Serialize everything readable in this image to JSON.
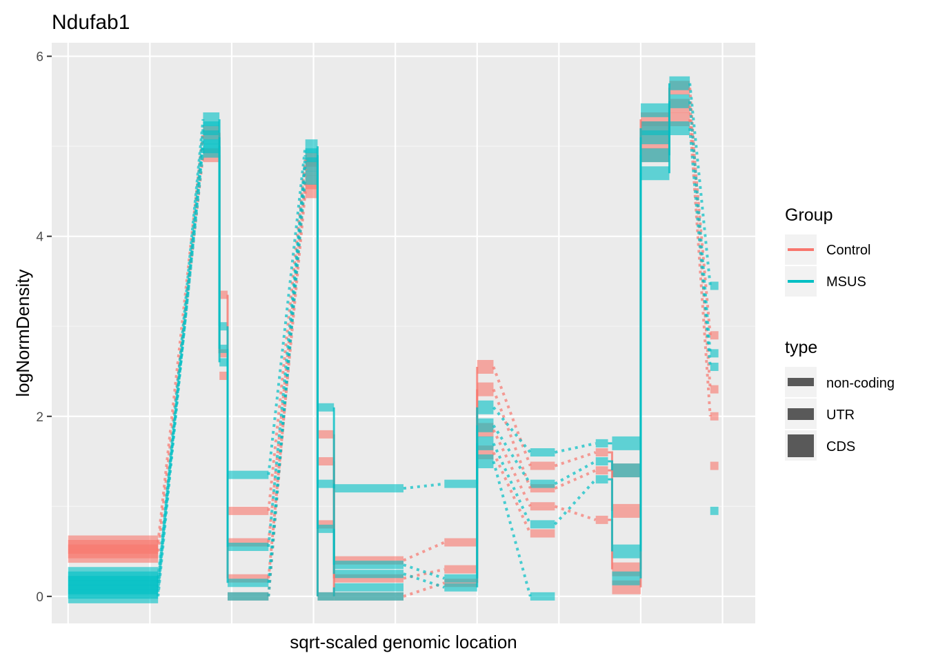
{
  "chart_data": {
    "type": "line",
    "title": "Ndufab1",
    "xlabel": "sqrt-scaled genomic location",
    "ylabel": "logNormDensity",
    "xlim": [
      -0.2,
      8.4
    ],
    "ylim": [
      -0.3,
      6.15
    ],
    "y_ticks": [
      0,
      2,
      4,
      6
    ],
    "y_tick_labels": [
      "0",
      "2",
      "4",
      "6"
    ],
    "x_gridlines": [
      0,
      1,
      2,
      3,
      4,
      5,
      6,
      7,
      8
    ],
    "grid": true,
    "legend": {
      "placement": "right",
      "group_title": "Group",
      "type_title": "type",
      "groups": [
        {
          "name": "Control",
          "color": "#F8766D"
        },
        {
          "name": "MSUS",
          "color": "#00BFC4"
        }
      ],
      "types": [
        {
          "name": "non-coding",
          "weight": "thin"
        },
        {
          "name": "UTR",
          "weight": "medium"
        },
        {
          "name": "CDS",
          "weight": "thick"
        }
      ]
    },
    "segments": [
      {
        "x0": 0.0,
        "x1": 1.1,
        "type": "CDS",
        "control": [
          0.5,
          0.6,
          0.45,
          0.55
        ],
        "msus": [
          0.1,
          0.0,
          0.15,
          0.2,
          0.05,
          0.25
        ]
      },
      {
        "x0": 1.65,
        "x1": 1.85,
        "type": "CDS",
        "control": [
          4.9,
          5.15
        ],
        "msus": [
          5.3,
          5.1,
          5.0,
          4.95,
          5.2
        ]
      },
      {
        "x0": 1.85,
        "x1": 1.95,
        "type": "UTR",
        "control": [
          3.35,
          2.7,
          2.45
        ],
        "msus": [
          3.0,
          2.75,
          2.6
        ]
      },
      {
        "x0": 1.95,
        "x1": 2.45,
        "type": "UTR",
        "control": [
          0.95,
          0.6,
          0.2,
          0.0
        ],
        "msus": [
          1.35,
          0.55,
          0.15,
          0.0
        ]
      },
      {
        "x0": 2.9,
        "x1": 3.05,
        "type": "CDS",
        "control": [
          4.85,
          4.6,
          4.5,
          4.75
        ],
        "msus": [
          5.0,
          4.8,
          4.65,
          4.9
        ]
      },
      {
        "x0": 3.05,
        "x1": 3.25,
        "type": "UTR",
        "control": [
          1.8,
          1.5,
          0.8,
          0.0
        ],
        "msus": [
          2.1,
          1.25,
          0.75,
          0.0
        ]
      },
      {
        "x0": 3.25,
        "x1": 4.1,
        "type": "UTR",
        "control": [
          0.4,
          0.2,
          0.0
        ],
        "msus": [
          1.2,
          0.35,
          0.25,
          0.1,
          0.0
        ]
      },
      {
        "x0": 4.6,
        "x1": 5.0,
        "type": "UTR",
        "control": [
          0.6,
          0.3,
          0.15
        ],
        "msus": [
          1.25,
          0.2,
          0.1
        ]
      },
      {
        "x0": 5.0,
        "x1": 5.2,
        "type": "CDS",
        "control": [
          2.55,
          2.3,
          1.85,
          1.6
        ],
        "msus": [
          2.1,
          1.9,
          1.7,
          1.5
        ]
      },
      {
        "x0": 5.65,
        "x1": 5.95,
        "type": "UTR",
        "control": [
          1.45,
          1.2,
          1.0,
          0.7
        ],
        "msus": [
          1.6,
          1.25,
          0.8,
          0.0
        ]
      },
      {
        "x0": 6.45,
        "x1": 6.6,
        "type": "UTR",
        "control": [
          1.6,
          1.4,
          0.85
        ],
        "msus": [
          1.7,
          1.5,
          1.3
        ]
      },
      {
        "x0": 6.65,
        "x1": 7.0,
        "type": "CDS",
        "control": [
          1.4,
          0.95,
          0.3,
          0.1
        ],
        "msus": [
          1.7,
          1.4,
          0.5,
          0.2
        ]
      },
      {
        "x0": 7.0,
        "x1": 7.35,
        "type": "CDS",
        "control": [
          4.9,
          5.05,
          5.2,
          5.3
        ],
        "msus": [
          4.7,
          4.9,
          5.1,
          5.2,
          5.4
        ]
      },
      {
        "x0": 7.35,
        "x1": 7.6,
        "type": "CDS",
        "control": [
          5.45,
          5.65,
          5.3
        ],
        "msus": [
          5.7,
          5.5,
          5.2
        ]
      },
      {
        "x0": 7.85,
        "x1": 7.95,
        "type": "UTR",
        "control": [
          2.9,
          2.3,
          2.0,
          1.45
        ],
        "msus": [
          3.45,
          2.7,
          2.55,
          0.95
        ]
      }
    ]
  }
}
